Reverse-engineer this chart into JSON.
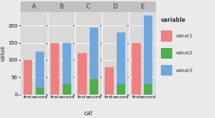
{
  "facets": [
    "A",
    "B",
    "C",
    "D",
    "E"
  ],
  "groups": [
    "first",
    "second"
  ],
  "v1_first": [
    100,
    150,
    120,
    80,
    150
  ],
  "v2_second": [
    20,
    30,
    45,
    30,
    30
  ],
  "v3_second": [
    105,
    120,
    150,
    150,
    200
  ],
  "color1": "#F08080",
  "color2": "#4CAF50",
  "color3": "#6FA8DC",
  "bg_color": "#EAEAEA",
  "panel_bg": "#D9D9D9",
  "strip_bg": "#C0C0C0",
  "ylabel": "value",
  "xlabel": "cat",
  "ylim": [
    0,
    240
  ],
  "yticks": [
    0,
    50,
    100,
    150,
    200
  ],
  "legend_title": "variable",
  "legend_labels": [
    "value1",
    "value2",
    "value3"
  ]
}
